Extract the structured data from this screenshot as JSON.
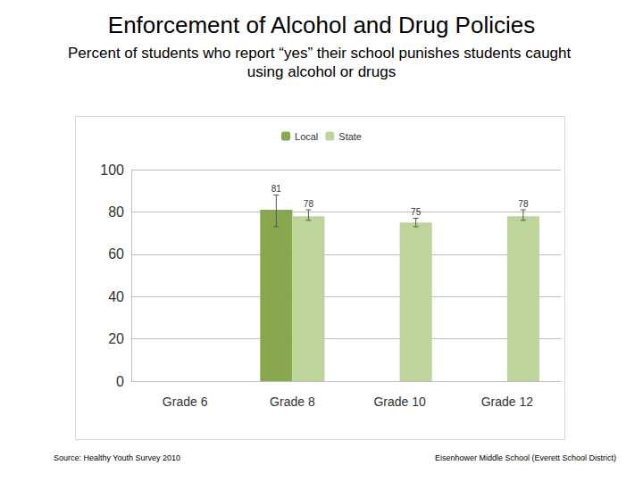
{
  "chart_data": {
    "type": "bar",
    "title": "Enforcement of Alcohol and Drug Policies",
    "subtitle": "Percent of students who report “yes” their school punishes students caught using alcohol or drugs",
    "categories": [
      "Grade 6",
      "Grade 8",
      "Grade 10",
      "Grade 12"
    ],
    "series": [
      {
        "name": "Local",
        "color": "#87a84f",
        "values": [
          null,
          81,
          null,
          null
        ],
        "error_low": [
          null,
          73,
          null,
          null
        ],
        "error_high": [
          null,
          88,
          null,
          null
        ]
      },
      {
        "name": "State",
        "color": "#bdd59b",
        "values": [
          null,
          78,
          75,
          78
        ],
        "error_low": [
          null,
          76,
          73,
          76
        ],
        "error_high": [
          null,
          81,
          77,
          81
        ]
      }
    ],
    "ylim": [
      0,
      100
    ],
    "yticks": [
      0,
      20,
      40,
      60,
      80,
      100
    ],
    "grid": true,
    "legend": "top",
    "data_labels": true,
    "source": "Source: Healthy Youth Survey 2010",
    "annotations": [
      "Eisenhower Middle School (Everett School District)"
    ]
  }
}
